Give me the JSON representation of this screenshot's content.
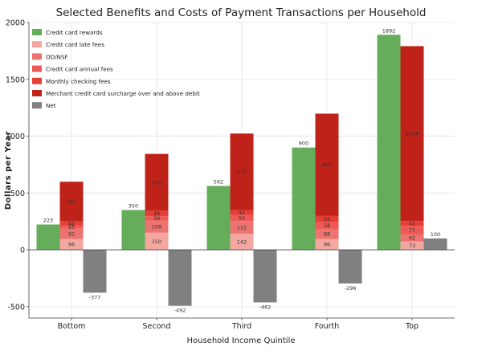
{
  "chart_data": {
    "type": "bar",
    "title": "Selected Benefits and Costs of Payment Transactions per Household",
    "xlabel": "Household Income Quintile",
    "ylabel": "Dollars per Year",
    "categories": [
      "Bottom",
      "Second",
      "Third",
      "Fourth",
      "Top"
    ],
    "ylim": [
      -600,
      2000
    ],
    "yticks": [
      -500,
      0,
      500,
      1000,
      1500,
      2000
    ],
    "grid": true,
    "legend_position": "top-left",
    "series": [
      {
        "name": "Credit card rewards",
        "color": "#65ad5a",
        "group": "benefit",
        "values": [
          223,
          350,
          562,
          900,
          1892
        ],
        "labels": [
          "223",
          "350",
          "562",
          "900",
          "1892"
        ]
      },
      {
        "name": "Credit card late fees",
        "color": "#f4a6a1",
        "group": "cost",
        "values": [
          96,
          150,
          142,
          96,
          73
        ],
        "labels": [
          "96",
          "150",
          "142",
          "96",
          "73"
        ]
      },
      {
        "name": "OD/NSF",
        "color": "#ec7470",
        "group": "cost",
        "values": [
          92,
          108,
          112,
          88,
          62
        ],
        "labels": [
          "92",
          "108",
          "112",
          "88",
          "62"
        ]
      },
      {
        "name": "Credit card annual fees",
        "color": "#ee5a55",
        "group": "cost",
        "values": [
          25,
          38,
          54,
          58,
          77
        ],
        "labels": [
          "25",
          "38",
          "54",
          "58",
          "77"
        ]
      },
      {
        "name": "Monthly checking fees",
        "color": "#e63e37",
        "group": "cost",
        "values": [
          42,
          48,
          42,
          56,
          42
        ],
        "labels": [
          "42",
          "48",
          "42",
          "56",
          "42"
        ]
      },
      {
        "name": "Merchant credit card surcharge over and above debit",
        "color": "#bf2219",
        "group": "cost",
        "values": [
          344,
          500,
          673,
          900,
          1538
        ],
        "labels": [
          "344",
          "500",
          "673",
          "900",
          "1538"
        ]
      },
      {
        "name": "Net",
        "color": "#808080",
        "group": "net",
        "values": [
          -377,
          -492,
          -462,
          -296,
          100
        ],
        "labels": [
          "-377",
          "-492",
          "-462",
          "-296",
          "100"
        ]
      }
    ]
  }
}
